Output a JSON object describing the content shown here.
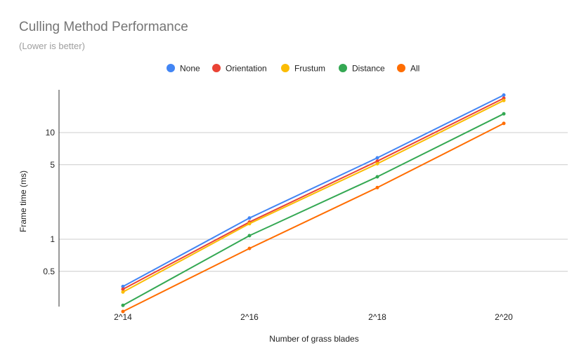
{
  "chart_data": {
    "type": "line",
    "title": "Culling Method Performance",
    "subtitle": "(Lower is better)",
    "xlabel": "Number of grass blades",
    "ylabel": "Frame time (ms)",
    "yscale": "log",
    "categories": [
      "2^14",
      "2^16",
      "2^18",
      "2^20"
    ],
    "yticks": [
      0.5,
      1,
      5,
      10
    ],
    "ytick_labels": [
      "0.5",
      "1",
      "5",
      "10"
    ],
    "grid": true,
    "legend_position": "top",
    "series": [
      {
        "name": "None",
        "color": "#4285F4",
        "values": [
          0.36,
          1.58,
          5.8,
          22.5
        ]
      },
      {
        "name": "Orientation",
        "color": "#EA4335",
        "values": [
          0.34,
          1.45,
          5.4,
          21.0
        ]
      },
      {
        "name": "Frustum",
        "color": "#FBBC04",
        "values": [
          0.32,
          1.4,
          5.1,
          20.0
        ]
      },
      {
        "name": "Distance",
        "color": "#34A853",
        "values": [
          0.24,
          1.08,
          3.85,
          15.0
        ]
      },
      {
        "name": "All",
        "color": "#FF6D01",
        "values": [
          0.21,
          0.82,
          3.05,
          12.2
        ]
      }
    ]
  }
}
